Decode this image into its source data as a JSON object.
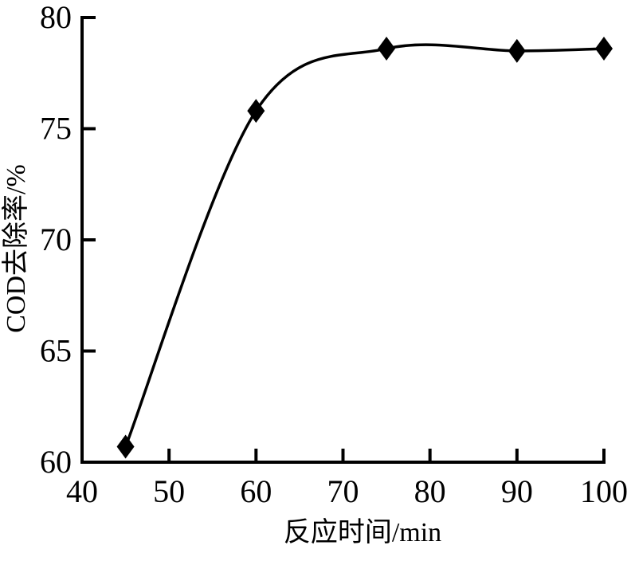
{
  "figure": {
    "background_color": "#ffffff",
    "line_color": "#000000",
    "title": ""
  },
  "chart_data": {
    "type": "line",
    "title": "",
    "xlabel": "反应时间/min",
    "ylabel": "COD去除率/%",
    "xlim": [
      40,
      100
    ],
    "ylim": [
      60,
      80
    ],
    "xticks": [
      40,
      50,
      60,
      70,
      80,
      90,
      100
    ],
    "yticks": [
      60,
      65,
      70,
      75,
      80
    ],
    "grid": false,
    "legend_position": "none",
    "marker": "diamond",
    "marker_color": "#000000",
    "line_color": "#000000",
    "smooth": true,
    "series": [
      {
        "name": "COD removal rate",
        "x": [
          45,
          60,
          75,
          90,
          100
        ],
        "y": [
          60.7,
          75.8,
          78.6,
          78.5,
          78.6
        ]
      }
    ]
  }
}
